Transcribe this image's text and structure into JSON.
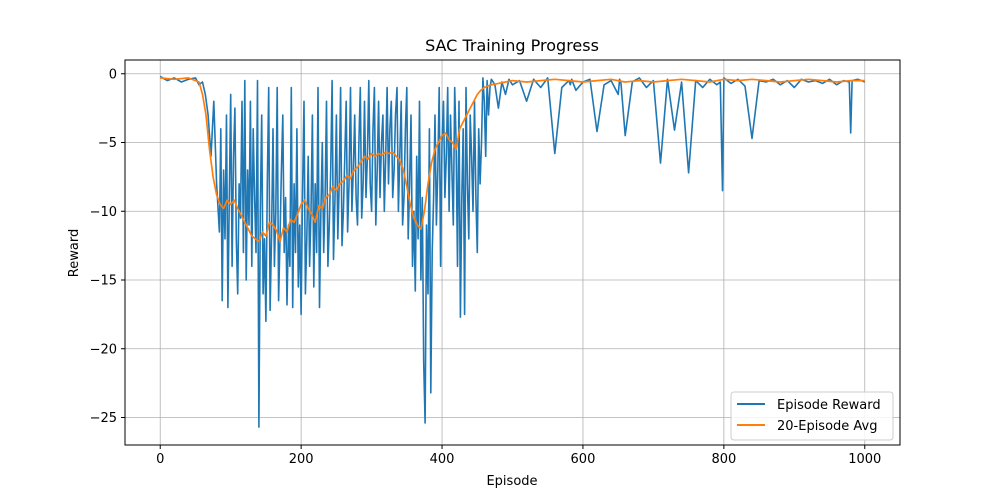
{
  "chart_data": {
    "type": "line",
    "title": "SAC Training Progress",
    "xlabel": "Episode",
    "ylabel": "Reward",
    "xlim": [
      -50,
      1050
    ],
    "ylim": [
      -27,
      1
    ],
    "xticks": [
      0,
      200,
      400,
      600,
      800,
      1000
    ],
    "yticks": [
      0,
      -5,
      -10,
      -15,
      -20,
      -25
    ],
    "grid": true,
    "legend": "lower-right",
    "colors": {
      "episode_reward": "#1f77b4",
      "avg": "#ff7f0e"
    },
    "series": [
      {
        "name": "Episode Reward",
        "x": [
          0,
          10,
          20,
          30,
          40,
          50,
          55,
          60,
          64,
          68,
          72,
          76,
          80,
          84,
          86,
          88,
          90,
          92,
          94,
          96,
          98,
          100,
          102,
          104,
          106,
          108,
          110,
          112,
          114,
          116,
          118,
          120,
          122,
          124,
          126,
          128,
          130,
          132,
          134,
          136,
          138,
          140,
          142,
          144,
          146,
          148,
          150,
          152,
          154,
          156,
          158,
          160,
          162,
          164,
          166,
          168,
          170,
          172,
          174,
          176,
          178,
          180,
          182,
          184,
          186,
          188,
          190,
          192,
          194,
          196,
          198,
          200,
          202,
          204,
          206,
          208,
          210,
          212,
          214,
          216,
          218,
          220,
          222,
          224,
          226,
          228,
          230,
          232,
          234,
          236,
          238,
          240,
          242,
          244,
          246,
          248,
          250,
          252,
          254,
          256,
          258,
          260,
          262,
          264,
          266,
          268,
          270,
          272,
          274,
          276,
          278,
          280,
          282,
          284,
          286,
          288,
          290,
          292,
          294,
          296,
          298,
          300,
          302,
          304,
          306,
          308,
          310,
          312,
          314,
          316,
          318,
          320,
          322,
          324,
          326,
          328,
          330,
          332,
          334,
          336,
          338,
          340,
          342,
          344,
          346,
          348,
          350,
          352,
          354,
          356,
          358,
          360,
          362,
          364,
          366,
          368,
          370,
          372,
          374,
          376,
          378,
          380,
          382,
          384,
          386,
          388,
          390,
          392,
          394,
          396,
          398,
          400,
          402,
          404,
          406,
          408,
          410,
          412,
          414,
          416,
          418,
          420,
          422,
          424,
          426,
          428,
          430,
          432,
          434,
          436,
          438,
          440,
          442,
          444,
          446,
          448,
          450,
          452,
          454,
          456,
          458,
          460,
          462,
          464,
          466,
          468,
          470,
          475,
          480,
          485,
          490,
          495,
          500,
          510,
          520,
          530,
          540,
          550,
          560,
          570,
          580,
          582,
          584,
          590,
          600,
          610,
          620,
          630,
          640,
          650,
          652,
          654,
          660,
          670,
          680,
          690,
          700,
          710,
          720,
          730,
          740,
          750,
          760,
          770,
          780,
          790,
          795,
          798,
          800,
          810,
          820,
          830,
          840,
          850,
          860,
          870,
          880,
          890,
          900,
          910,
          920,
          930,
          940,
          950,
          960,
          970,
          978,
          980,
          982,
          990,
          1000
        ],
        "y": [
          -0.2,
          -0.5,
          -0.3,
          -0.6,
          -0.4,
          -0.3,
          -0.8,
          -0.6,
          -1.5,
          -3,
          -6,
          -2,
          -8,
          -11.5,
          -4,
          -16.5,
          -7,
          -12,
          -3,
          -17,
          -9,
          -1.5,
          -14,
          -6,
          -2.5,
          -12,
          -16,
          -8,
          -10.5,
          -2,
          -13,
          -0.5,
          -15,
          -7,
          -11,
          -2,
          -14,
          -4,
          -9,
          -13,
          -0.5,
          -25.7,
          -10,
          -3,
          -16,
          -12,
          -18,
          -8,
          -1,
          -17.2,
          -12,
          -4,
          -14,
          -10,
          -1,
          -16.5,
          -12,
          -7,
          -3,
          -13,
          -9,
          -16.8,
          -11,
          -14,
          -1,
          -17,
          -8,
          -13,
          -4,
          -15.5,
          -11,
          -17.5,
          -9,
          -2,
          -16,
          -12,
          -6,
          -14,
          -10,
          -3,
          -15.5,
          -8,
          -13,
          -1,
          -17,
          -10,
          -5,
          -13,
          -9,
          -2,
          -14,
          -11,
          -7,
          -0.5,
          -13.5,
          -9,
          -3,
          -12,
          -8,
          -1,
          -12.5,
          -10,
          -6,
          -2,
          -11.5,
          -8,
          -1,
          -10,
          -7,
          -3,
          -9,
          -11,
          -5,
          -1,
          -10.5,
          -8,
          -2,
          -9,
          -6,
          -0.5,
          -8,
          -10,
          -4,
          -1,
          -11,
          -7,
          -2,
          -9,
          -5,
          -3,
          -10,
          -6,
          -1,
          -8,
          -4,
          -2,
          -9,
          -7,
          -3,
          -1,
          -10,
          -6,
          -2,
          -11,
          -9,
          -4,
          -1,
          -12,
          -8,
          -3,
          -14,
          -10,
          -15.8,
          -6,
          -12,
          -2,
          -15,
          -9,
          -21,
          -25.4,
          -11,
          -16,
          -4,
          -23.2,
          -13,
          -9,
          -3,
          -11,
          -7,
          -1,
          -14,
          -5,
          -2,
          -9,
          -6,
          -1,
          -10,
          -3,
          -7,
          -11,
          -1,
          -5,
          -14,
          -2,
          -17.7,
          -9,
          -4,
          -17.5,
          -1,
          -8,
          -12,
          -3,
          -6,
          -10,
          -2,
          -9,
          -13,
          -4,
          -8,
          -5,
          -0.3,
          -2,
          -6,
          -0.5,
          -3,
          -1,
          -0.4,
          -0.8,
          -2.5,
          -0.6,
          -1.5,
          -0.4,
          -0.8,
          -0.5,
          -2,
          -0.4,
          -1,
          -0.3,
          -5.8,
          -1,
          -0.5,
          -0.8,
          -0.4,
          -1.2,
          -0.6,
          -0.4,
          -4.2,
          -0.8,
          -0.5,
          -1.5,
          -0.4,
          -0.7,
          -4.5,
          -0.6,
          -0.3,
          -1,
          -0.5,
          -6.5,
          -0.4,
          -4.1,
          -0.6,
          -7.2,
          -0.5,
          -1,
          -0.4,
          -0.8,
          -0.6,
          -8.5,
          -0.3,
          -0.7,
          -0.4,
          -0.9,
          -4.7,
          -0.5,
          -0.6,
          -0.4,
          -0.8,
          -0.5,
          -1,
          -0.4,
          -0.6,
          -0.5,
          -0.7,
          -0.4,
          -0.8,
          -0.5,
          -0.6,
          -4.3,
          -0.5,
          -0.4,
          -0.6
        ]
      },
      {
        "name": "20-Episode Avg",
        "x": [
          0,
          20,
          40,
          55,
          60,
          65,
          70,
          75,
          80,
          85,
          90,
          95,
          100,
          105,
          110,
          115,
          120,
          125,
          130,
          135,
          140,
          145,
          150,
          155,
          160,
          165,
          170,
          175,
          180,
          185,
          190,
          195,
          200,
          205,
          210,
          215,
          220,
          225,
          230,
          235,
          240,
          245,
          250,
          255,
          260,
          265,
          270,
          275,
          280,
          285,
          290,
          295,
          300,
          305,
          310,
          315,
          320,
          325,
          330,
          335,
          340,
          345,
          350,
          355,
          360,
          365,
          370,
          375,
          380,
          385,
          390,
          395,
          400,
          405,
          410,
          415,
          420,
          425,
          430,
          435,
          440,
          445,
          450,
          455,
          460,
          465,
          470,
          480,
          490,
          500,
          520,
          540,
          560,
          580,
          600,
          620,
          640,
          660,
          680,
          700,
          720,
          740,
          760,
          780,
          800,
          820,
          840,
          860,
          880,
          900,
          920,
          940,
          960,
          980,
          1000
        ],
        "y": [
          -0.3,
          -0.4,
          -0.3,
          -0.6,
          -1.5,
          -3,
          -5.5,
          -7.5,
          -8.8,
          -9.5,
          -9.8,
          -9.2,
          -9.5,
          -9.2,
          -9.8,
          -10.3,
          -10.8,
          -11.3,
          -11.8,
          -12,
          -12.2,
          -11.5,
          -11.8,
          -10.8,
          -11,
          -11.4,
          -12.2,
          -11.2,
          -11.5,
          -10.6,
          -10.8,
          -10.2,
          -9.5,
          -9.2,
          -9.8,
          -10.2,
          -10.8,
          -9.6,
          -9.8,
          -9.0,
          -8.8,
          -8.2,
          -8.5,
          -8.0,
          -7.8,
          -7.4,
          -7.6,
          -7.0,
          -6.8,
          -6.4,
          -6.0,
          -6.2,
          -5.8,
          -6.0,
          -5.8,
          -5.9,
          -5.7,
          -5.8,
          -5.7,
          -6.0,
          -6.3,
          -7.0,
          -8.2,
          -9.5,
          -10.5,
          -11.0,
          -11.3,
          -10.0,
          -8.0,
          -6.5,
          -5.5,
          -5.0,
          -4.5,
          -4.3,
          -4.8,
          -5.0,
          -5.5,
          -4.0,
          -3.5,
          -3.0,
          -2.5,
          -2.0,
          -1.5,
          -1.2,
          -1.0,
          -0.9,
          -0.8,
          -0.7,
          -0.6,
          -0.5,
          -0.6,
          -0.5,
          -0.4,
          -0.5,
          -0.6,
          -0.5,
          -0.4,
          -0.6,
          -0.5,
          -0.6,
          -0.5,
          -0.4,
          -0.5,
          -0.6,
          -0.4,
          -0.5,
          -0.4,
          -0.5,
          -0.6,
          -0.5,
          -0.4,
          -0.5,
          -0.6,
          -0.5,
          -0.5
        ]
      }
    ]
  }
}
